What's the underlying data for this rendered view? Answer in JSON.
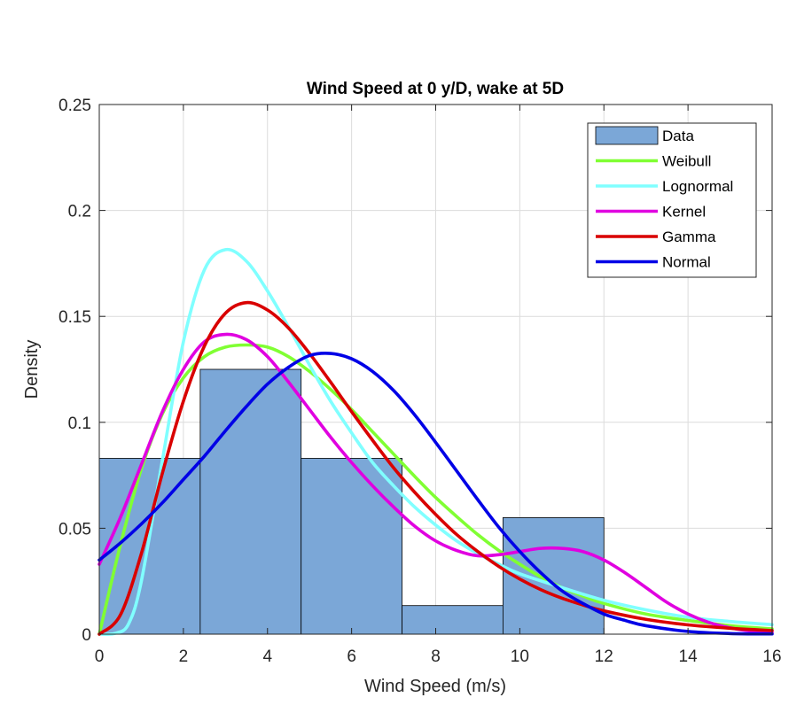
{
  "chart_data": {
    "type": "bar",
    "title": "Wind Speed at 0 y/D, wake at 5D",
    "xlabel": "Wind Speed (m/s)",
    "ylabel": "Density",
    "xlim": [
      0,
      16
    ],
    "ylim": [
      0,
      0.25
    ],
    "xticks": [
      0,
      2,
      4,
      6,
      8,
      10,
      12,
      14,
      16
    ],
    "xtick_labels": [
      "0",
      "2",
      "4",
      "6",
      "8",
      "10",
      "12",
      "14",
      "16"
    ],
    "yticks": [
      0,
      0.05,
      0.1,
      0.15,
      0.2,
      0.25
    ],
    "ytick_labels": [
      "0",
      "0.05",
      "0.1",
      "0.15",
      "0.2",
      "0.25"
    ],
    "grid": true,
    "legend_position": "top-right",
    "histogram": {
      "name": "Data",
      "color": "#7BA7D7",
      "bins": [
        {
          "x0": 0,
          "x1": 2.4,
          "value": 0.083
        },
        {
          "x0": 2.4,
          "x1": 4.8,
          "value": 0.125
        },
        {
          "x0": 4.8,
          "x1": 7.2,
          "value": 0.083
        },
        {
          "x0": 7.2,
          "x1": 9.6,
          "value": 0.0135
        },
        {
          "x0": 9.6,
          "x1": 12,
          "value": 0.055
        }
      ]
    },
    "series": [
      {
        "name": "Weibull",
        "color": "#80FF33",
        "points": [
          [
            0,
            0
          ],
          [
            0.5,
            0.042
          ],
          [
            1,
            0.078
          ],
          [
            1.5,
            0.104
          ],
          [
            2,
            0.121
          ],
          [
            2.5,
            0.131
          ],
          [
            3,
            0.1355
          ],
          [
            3.5,
            0.1365
          ],
          [
            4,
            0.1355
          ],
          [
            4.5,
            0.131
          ],
          [
            5,
            0.124
          ],
          [
            5.5,
            0.1155
          ],
          [
            6,
            0.106
          ],
          [
            6.5,
            0.0955
          ],
          [
            7,
            0.085
          ],
          [
            7.5,
            0.0745
          ],
          [
            8,
            0.0645
          ],
          [
            8.5,
            0.0555
          ],
          [
            9,
            0.047
          ],
          [
            9.5,
            0.0395
          ],
          [
            10,
            0.033
          ],
          [
            10.5,
            0.027
          ],
          [
            11,
            0.022
          ],
          [
            11.5,
            0.018
          ],
          [
            12,
            0.0145
          ],
          [
            13,
            0.0095
          ],
          [
            14,
            0.0065
          ],
          [
            15,
            0.004
          ],
          [
            16,
            0.0025
          ]
        ]
      },
      {
        "name": "Lognormal",
        "color": "#80FFFF",
        "points": [
          [
            0,
            0
          ],
          [
            0.4,
            0.0005
          ],
          [
            0.7,
            0.005
          ],
          [
            1,
            0.025
          ],
          [
            1.5,
            0.082
          ],
          [
            2,
            0.138
          ],
          [
            2.5,
            0.172
          ],
          [
            3,
            0.1815
          ],
          [
            3.5,
            0.176
          ],
          [
            4,
            0.162
          ],
          [
            4.5,
            0.145
          ],
          [
            5,
            0.127
          ],
          [
            5.5,
            0.11
          ],
          [
            6,
            0.095
          ],
          [
            6.5,
            0.081
          ],
          [
            7,
            0.07
          ],
          [
            7.5,
            0.06
          ],
          [
            8,
            0.0515
          ],
          [
            8.5,
            0.044
          ],
          [
            9,
            0.038
          ],
          [
            9.5,
            0.033
          ],
          [
            10,
            0.0285
          ],
          [
            11,
            0.022
          ],
          [
            12,
            0.016
          ],
          [
            13,
            0.0115
          ],
          [
            14,
            0.008
          ],
          [
            15,
            0.006
          ],
          [
            16,
            0.0045
          ]
        ]
      },
      {
        "name": "Kernel",
        "color": "#E000E0",
        "points": [
          [
            0,
            0.033
          ],
          [
            0.5,
            0.055
          ],
          [
            1,
            0.08
          ],
          [
            1.5,
            0.105
          ],
          [
            2,
            0.125
          ],
          [
            2.5,
            0.138
          ],
          [
            3,
            0.1415
          ],
          [
            3.5,
            0.139
          ],
          [
            4,
            0.131
          ],
          [
            4.5,
            0.119
          ],
          [
            5,
            0.106
          ],
          [
            5.5,
            0.093
          ],
          [
            6,
            0.081
          ],
          [
            6.5,
            0.07
          ],
          [
            7,
            0.06
          ],
          [
            7.5,
            0.051
          ],
          [
            8,
            0.044
          ],
          [
            8.5,
            0.0395
          ],
          [
            9,
            0.037
          ],
          [
            9.5,
            0.0375
          ],
          [
            10,
            0.039
          ],
          [
            10.5,
            0.0405
          ],
          [
            11,
            0.0405
          ],
          [
            11.5,
            0.039
          ],
          [
            12,
            0.035
          ],
          [
            12.5,
            0.029
          ],
          [
            13,
            0.022
          ],
          [
            13.5,
            0.015
          ],
          [
            14,
            0.0095
          ],
          [
            14.5,
            0.0055
          ],
          [
            15,
            0.003
          ],
          [
            15.5,
            0.0015
          ],
          [
            16,
            0.0008
          ]
        ]
      },
      {
        "name": "Gamma",
        "color": "#D90000",
        "points": [
          [
            0,
            0
          ],
          [
            0.5,
            0.009
          ],
          [
            1,
            0.038
          ],
          [
            1.5,
            0.076
          ],
          [
            2,
            0.11
          ],
          [
            2.5,
            0.136
          ],
          [
            3,
            0.1515
          ],
          [
            3.5,
            0.1565
          ],
          [
            4,
            0.153
          ],
          [
            4.5,
            0.1445
          ],
          [
            5,
            0.1325
          ],
          [
            5.5,
            0.119
          ],
          [
            6,
            0.105
          ],
          [
            6.5,
            0.0915
          ],
          [
            7,
            0.0785
          ],
          [
            7.5,
            0.067
          ],
          [
            8,
            0.0565
          ],
          [
            8.5,
            0.047
          ],
          [
            9,
            0.039
          ],
          [
            9.5,
            0.032
          ],
          [
            10,
            0.026
          ],
          [
            10.5,
            0.021
          ],
          [
            11,
            0.017
          ],
          [
            11.5,
            0.0138
          ],
          [
            12,
            0.011
          ],
          [
            13,
            0.007
          ],
          [
            14,
            0.0044
          ],
          [
            15,
            0.0028
          ],
          [
            16,
            0.0017
          ]
        ]
      },
      {
        "name": "Normal",
        "color": "#0000E6",
        "points": [
          [
            0,
            0.035
          ],
          [
            0.5,
            0.043
          ],
          [
            1,
            0.052
          ],
          [
            1.5,
            0.062
          ],
          [
            2,
            0.073
          ],
          [
            2.5,
            0.084
          ],
          [
            3,
            0.096
          ],
          [
            3.5,
            0.1075
          ],
          [
            4,
            0.118
          ],
          [
            4.5,
            0.126
          ],
          [
            5,
            0.1315
          ],
          [
            5.5,
            0.1325
          ],
          [
            6,
            0.13
          ],
          [
            6.5,
            0.124
          ],
          [
            7,
            0.115
          ],
          [
            7.5,
            0.1035
          ],
          [
            8,
            0.0905
          ],
          [
            8.5,
            0.077
          ],
          [
            9,
            0.0635
          ],
          [
            9.5,
            0.0505
          ],
          [
            10,
            0.039
          ],
          [
            10.5,
            0.029
          ],
          [
            11,
            0.0205
          ],
          [
            11.5,
            0.0145
          ],
          [
            12,
            0.0095
          ],
          [
            12.5,
            0.0065
          ],
          [
            13,
            0.004
          ],
          [
            14,
            0.0013
          ],
          [
            15,
            0.0003
          ],
          [
            16,
            0.0001
          ]
        ]
      }
    ]
  }
}
